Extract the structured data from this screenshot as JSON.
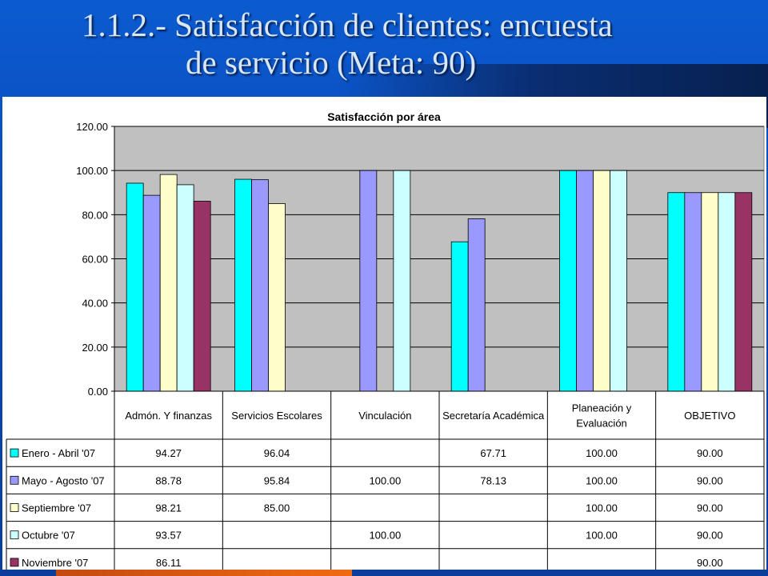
{
  "slide": {
    "title_line1": "1.1.2.- Satisfacción de clientes: encuesta",
    "title_line2": "de servicio   (Meta: 90)"
  },
  "colors": {
    "background": "#0a47b6",
    "title_text": "#d8e6f6",
    "plot_area": "#c0c0c0",
    "accent_strip": "#f06a10"
  },
  "chart_data": {
    "type": "bar",
    "title": "Satisfacción por área",
    "categories": [
      "Admón. Y finanzas",
      "Servicios Escolares",
      "Vinculación",
      "Secretaría Académica",
      "Planeación y Evaluación",
      "OBJETIVO"
    ],
    "series": [
      {
        "name": "Enero - Abril  '07",
        "color": "#00ffff",
        "values": [
          94.27,
          96.04,
          null,
          67.71,
          100.0,
          90.0
        ],
        "labels": [
          "94.27",
          "96.04",
          "",
          "67.71",
          "100.00",
          "90.00"
        ]
      },
      {
        "name": "Mayo - Agosto  '07",
        "color": "#9999ff",
        "values": [
          88.78,
          95.84,
          100.0,
          78.13,
          100.0,
          90.0
        ],
        "labels": [
          "88.78",
          "95.84",
          "100.00",
          "78.13",
          "100.00",
          "90.00"
        ]
      },
      {
        "name": "Septiembre '07",
        "color": "#ffffcc",
        "values": [
          98.21,
          85.0,
          null,
          null,
          100.0,
          90.0
        ],
        "labels": [
          "98.21",
          "85.00",
          "",
          "",
          "100.00",
          "90.00"
        ]
      },
      {
        "name": "Octubre '07",
        "color": "#ccffff",
        "values": [
          93.57,
          null,
          100.0,
          null,
          100.0,
          90.0
        ],
        "labels": [
          "93.57",
          "",
          "100.00",
          "",
          "100.00",
          "90.00"
        ]
      },
      {
        "name": "Noviembre '07",
        "color": "#993366",
        "values": [
          86.11,
          null,
          null,
          null,
          null,
          90.0
        ],
        "labels": [
          "86.11",
          "",
          "",
          "",
          "",
          "90.00"
        ]
      }
    ],
    "ylim": [
      0,
      120
    ],
    "yticks": [
      "0.00",
      "20.00",
      "40.00",
      "60.00",
      "80.00",
      "100.00",
      "120.00"
    ],
    "xlabel": "",
    "ylabel": "",
    "grid": true,
    "legend": "data-table"
  }
}
